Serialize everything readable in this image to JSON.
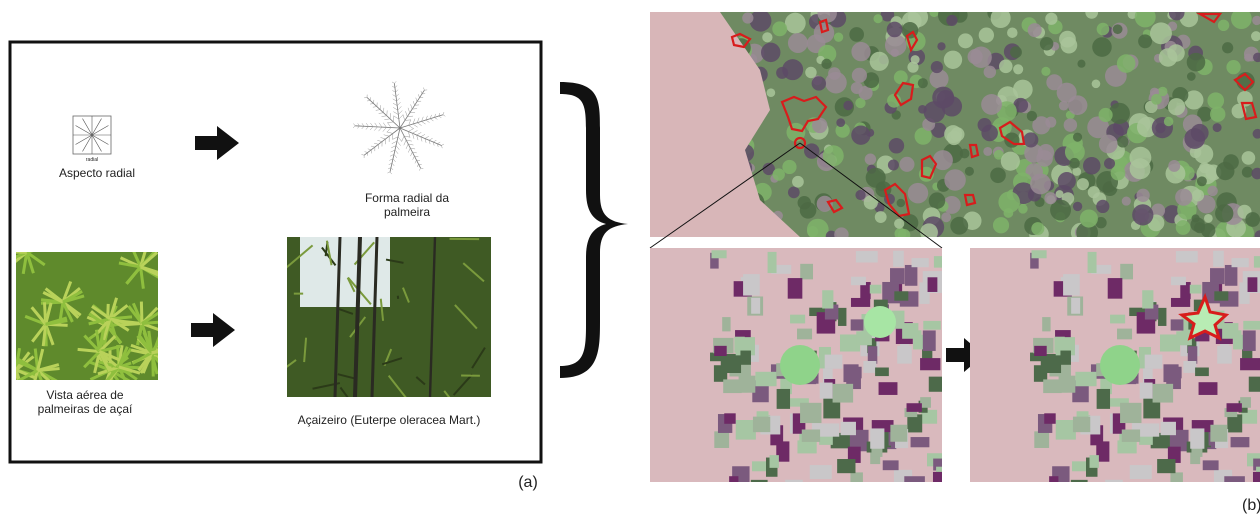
{
  "panel_a": {
    "aspect_small": "radial",
    "aspect": "Aspecto radial",
    "palm_form_lines": [
      "Forma radial da",
      "palmeira"
    ],
    "aerial_view_lines": [
      "Vista aérea de",
      "palmeiras de açaí"
    ],
    "photo_caption": "Açaizeiro (Euterpe oleracea Mart.)",
    "label": "(a)"
  },
  "panel_b": {
    "label": "(b)"
  }
}
